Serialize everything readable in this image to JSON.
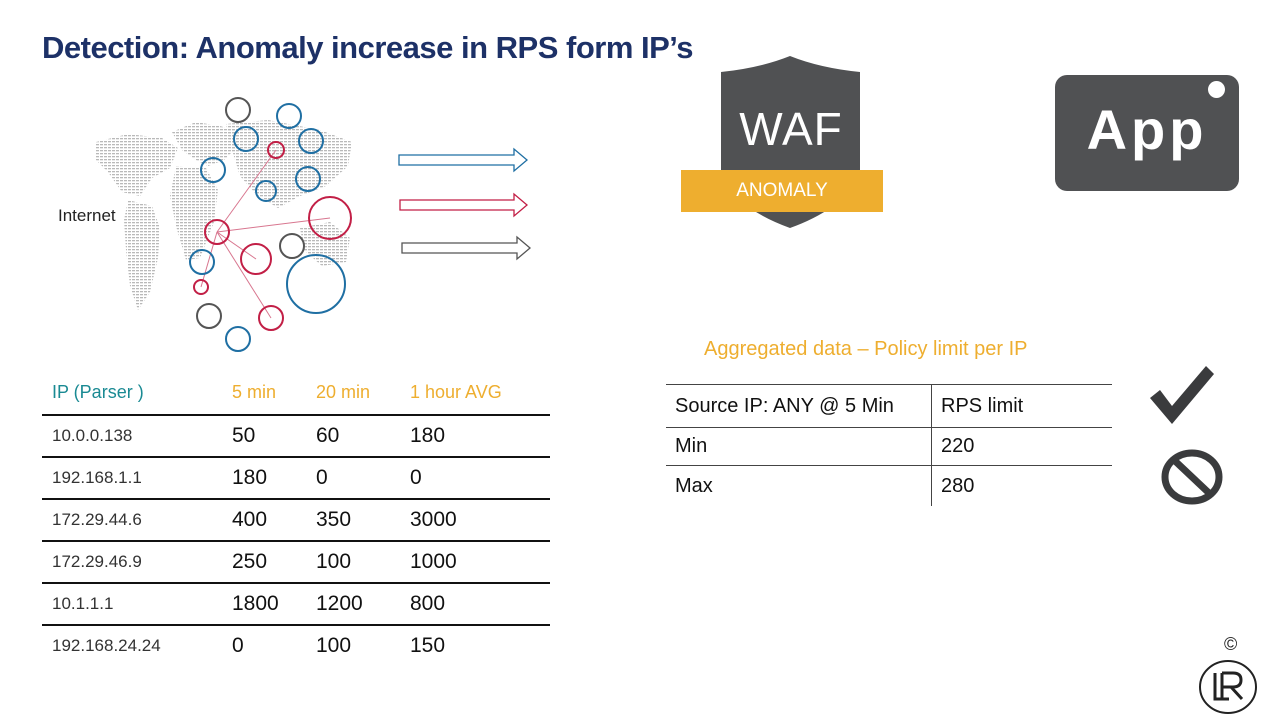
{
  "title": "Detection: Anomaly increase in RPS form IP’s",
  "internet_label": "Internet",
  "waf": {
    "label": "WAF",
    "badge": "ANOMALY"
  },
  "app": {
    "label": "App"
  },
  "ip_table": {
    "headers": [
      "IP (Parser )",
      "5 min",
      "20 min",
      "1 hour AVG"
    ],
    "rows": [
      [
        "10.0.0.138",
        "50",
        "60",
        "180"
      ],
      [
        "192.168.1.1",
        "180",
        "0",
        "0"
      ],
      [
        "172.29.44.6",
        "400",
        "350",
        "3000"
      ],
      [
        "172.29.46.9",
        "250",
        "100",
        "1000"
      ],
      [
        "10.1.1.1",
        "1800",
        "1200",
        "800"
      ],
      [
        "192.168.24.24",
        "0",
        "100",
        "150"
      ]
    ]
  },
  "aggregated": {
    "title": "Aggregated data – Policy limit per IP",
    "rows": [
      [
        "Source IP: ANY @ 5 Min",
        "RPS  limit"
      ],
      [
        "Min",
        "220"
      ],
      [
        "Max",
        "280"
      ]
    ]
  },
  "icons": {
    "check": "checkmark-icon",
    "ban": "prohibited-icon",
    "logo": "lr-logo-icon"
  },
  "colors": {
    "title": "#1d3167",
    "blue": "#1f6fa3",
    "red": "#c21f46",
    "gray": "#555555",
    "accent": "#eeae2f",
    "teal": "#1a8a93",
    "app_bg": "#505153"
  },
  "copyright": "©",
  "logo_text": "LR"
}
